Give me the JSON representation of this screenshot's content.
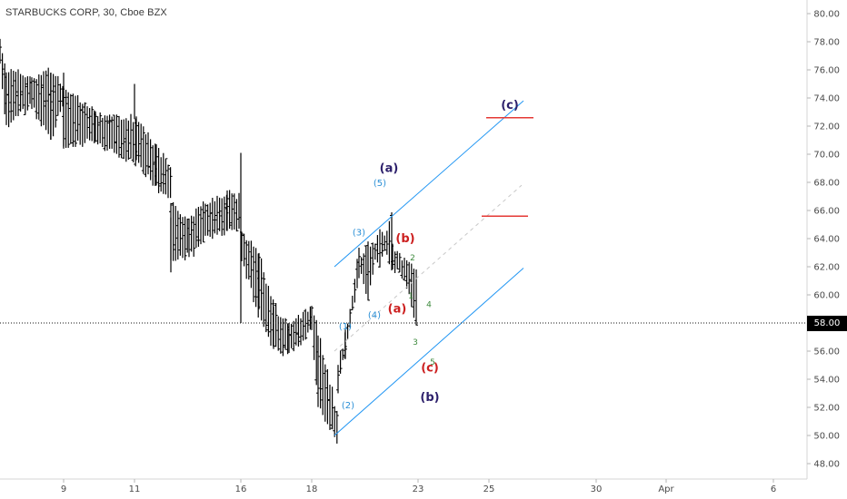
{
  "header": {
    "symbol_title": "STARBUCKS CORP, 30, Cboe BZX"
  },
  "chart_data": {
    "type": "bar",
    "subtype": "ohlc",
    "title": "STARBUCKS CORP, 30, Cboe BZX",
    "ylim": [
      47.3,
      81.1
    ],
    "y_ticks": [
      "48.00",
      "50.00",
      "52.00",
      "54.00",
      "56.00",
      "58.00",
      "60.00",
      "62.00",
      "64.00",
      "66.00",
      "68.00",
      "70.00",
      "72.00",
      "74.00",
      "76.00",
      "78.00",
      "80.00"
    ],
    "x_ticks": [
      "9",
      "11",
      "16",
      "18",
      "23",
      "25",
      "30",
      "Apr",
      "6"
    ],
    "current_price": "58.00",
    "colors": {
      "bars": "#000000",
      "channel": "#2196f3",
      "target": "#e53935",
      "wave_primary": "#2c1f6b",
      "wave_red": "#cc1f1f",
      "wave_blue": "#2a8fd6",
      "wave_green": "#3d8a3d",
      "midline": "#c8c8c8"
    },
    "segments": [
      {
        "name": "early-march",
        "points": [
          [
            77.6,
            76.8
          ],
          [
            75.6,
            72.5
          ],
          [
            74.9,
            73.8
          ],
          [
            75.6,
            71.5
          ],
          [
            74.5,
            74.0
          ]
        ]
      },
      {
        "name": "mid-march-drop",
        "points": [
          [
            74.3,
            71.1
          ],
          [
            72.6,
            71.3
          ],
          [
            72.1,
            69.8
          ],
          [
            70.2,
            67.9
          ],
          [
            68.5,
            67.4
          ]
        ]
      },
      {
        "name": "gap-zone",
        "points": [
          [
            66.2,
            63.0
          ],
          [
            64.9,
            63.2
          ],
          [
            66.0,
            64.3
          ],
          [
            66.8,
            64.9
          ],
          [
            66.4,
            65.1
          ]
        ]
      },
      {
        "name": "decline-to-low",
        "points": [
          [
            64.0,
            62.7
          ],
          [
            62.5,
            59.0
          ],
          [
            58.9,
            56.7
          ],
          [
            57.4,
            56.2
          ],
          [
            58.8,
            57.9
          ],
          [
            57.0,
            52.5
          ],
          [
            51.0,
            50.0
          ]
        ]
      },
      {
        "name": "rally",
        "points": [
          [
            53.5,
            55.0
          ],
          [
            57.0,
            56.0
          ],
          [
            61.5,
            62.9
          ],
          [
            63.5,
            60.2
          ],
          [
            62.5,
            64.5
          ],
          [
            65.7,
            62.0
          ]
        ]
      },
      {
        "name": "pullback",
        "points": [
          [
            63.2,
            62.3
          ],
          [
            62.0,
            61.5
          ],
          [
            61.5,
            58.0
          ]
        ]
      }
    ],
    "channel": {
      "upper": [
        [
          50.1,
          62.0
        ],
        [
          73.8,
          69.4
        ]
      ],
      "lower": [
        [
          50.1,
          50.0
        ],
        [
          73.8,
          61.9
        ]
      ]
    },
    "targets": [
      72.6,
      65.6
    ],
    "wave_labels": [
      {
        "text": "(a)",
        "color": "wave_primary",
        "y": 69.0
      },
      {
        "text": "(c)",
        "color": "wave_primary",
        "y": 73.5
      },
      {
        "text": "(b)",
        "color": "wave_primary",
        "y": 52.7
      },
      {
        "text": "(b)",
        "color": "wave_red",
        "y": 64.0
      },
      {
        "text": "(a)",
        "color": "wave_red",
        "y": 59.0
      },
      {
        "text": "(c)",
        "color": "wave_red",
        "y": 54.8
      },
      {
        "text": "(5)",
        "color": "wave_blue",
        "y": 68.0
      },
      {
        "text": "(3)",
        "color": "wave_blue",
        "y": 64.5
      },
      {
        "text": "(4)",
        "color": "wave_blue",
        "y": 58.6
      },
      {
        "text": "(1)",
        "color": "wave_blue",
        "y": 57.8
      },
      {
        "text": "(2)",
        "color": "wave_blue",
        "y": 52.2
      },
      {
        "text": "2",
        "color": "wave_green",
        "y": 62.7
      },
      {
        "text": "1",
        "color": "wave_green",
        "y": 60.0
      },
      {
        "text": "4",
        "color": "wave_green",
        "y": 59.4
      },
      {
        "text": "3",
        "color": "wave_green",
        "y": 56.7
      },
      {
        "text": "5",
        "color": "wave_green",
        "y": 55.3
      }
    ]
  }
}
